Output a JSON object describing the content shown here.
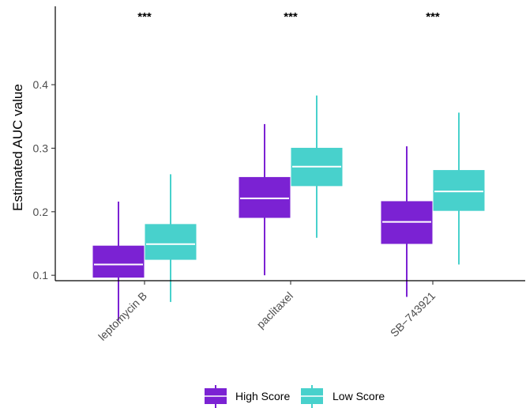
{
  "chart_data": {
    "type": "box",
    "ylabel": "Estimated AUC value",
    "xlabel": "",
    "ylim": [
      0.0,
      0.43
    ],
    "yticks": [
      0.1,
      0.2,
      0.3,
      0.4
    ],
    "ytick_labels": [
      "0.1",
      "0.2",
      "0.3",
      "0.4"
    ],
    "categories": [
      "leptomycin B",
      "paclitaxel",
      "SB−743921"
    ],
    "significance": [
      "***",
      "***",
      "***"
    ],
    "legend_position": "bottom",
    "grid": false,
    "series": [
      {
        "name": "High Score",
        "color": "#7b22d3",
        "median_color": "#ffffff",
        "boxes": [
          {
            "whisker_low": 0.029,
            "q1": 0.097,
            "median": 0.117,
            "q3": 0.146,
            "whisker_high": 0.216
          },
          {
            "whisker_low": 0.1,
            "q1": 0.191,
            "median": 0.221,
            "q3": 0.254,
            "whisker_high": 0.338
          },
          {
            "whisker_low": 0.066,
            "q1": 0.15,
            "median": 0.184,
            "q3": 0.216,
            "whisker_high": 0.303
          }
        ]
      },
      {
        "name": "Low Score",
        "color": "#48d1cc",
        "median_color": "#ffffff",
        "boxes": [
          {
            "whisker_low": 0.058,
            "q1": 0.125,
            "median": 0.149,
            "q3": 0.18,
            "whisker_high": 0.259
          },
          {
            "whisker_low": 0.159,
            "q1": 0.241,
            "median": 0.271,
            "q3": 0.3,
            "whisker_high": 0.383
          },
          {
            "whisker_low": 0.117,
            "q1": 0.202,
            "median": 0.232,
            "q3": 0.265,
            "whisker_high": 0.356
          }
        ]
      }
    ]
  }
}
